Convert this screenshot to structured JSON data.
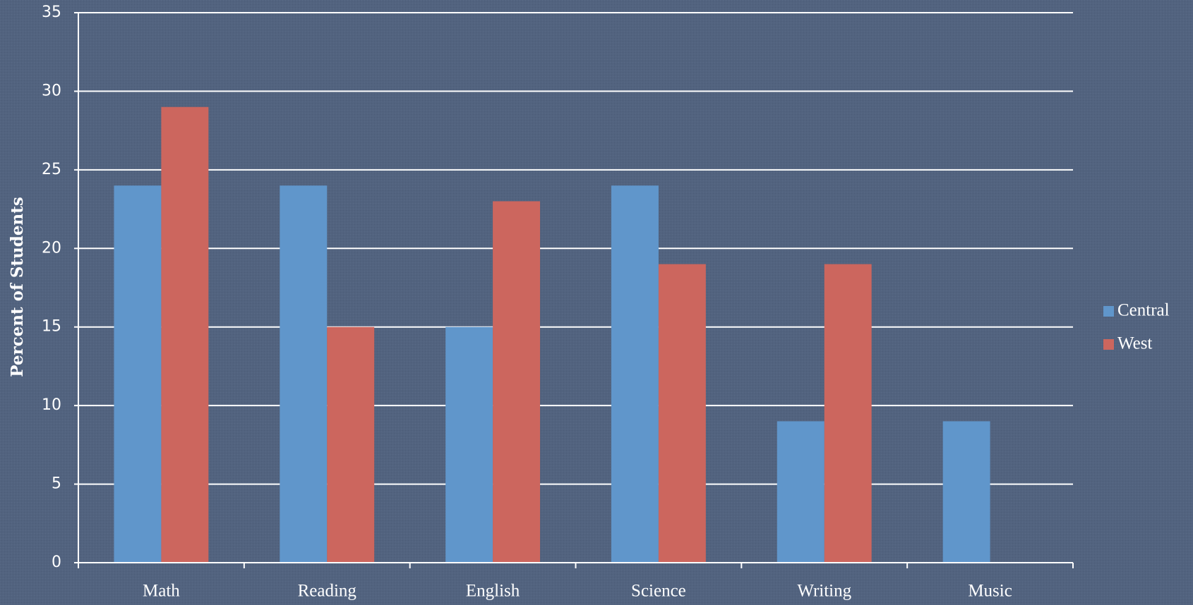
{
  "chart_data": {
    "type": "bar",
    "y_label": "Percent of Students",
    "categories": [
      "Math",
      "Reading",
      "English",
      "Science",
      "Writing",
      "Music"
    ],
    "series": [
      {
        "name": "Central",
        "color": "#6096cb",
        "values": [
          24,
          24,
          15,
          24,
          9,
          9
        ]
      },
      {
        "name": "West",
        "color": "#cc665e",
        "values": [
          29,
          15,
          23,
          19,
          19,
          null
        ]
      }
    ],
    "ylim": [
      0,
      35
    ],
    "yticks": [
      0,
      5,
      10,
      15,
      20,
      25,
      30,
      35
    ],
    "grid": true,
    "legend": "right"
  }
}
